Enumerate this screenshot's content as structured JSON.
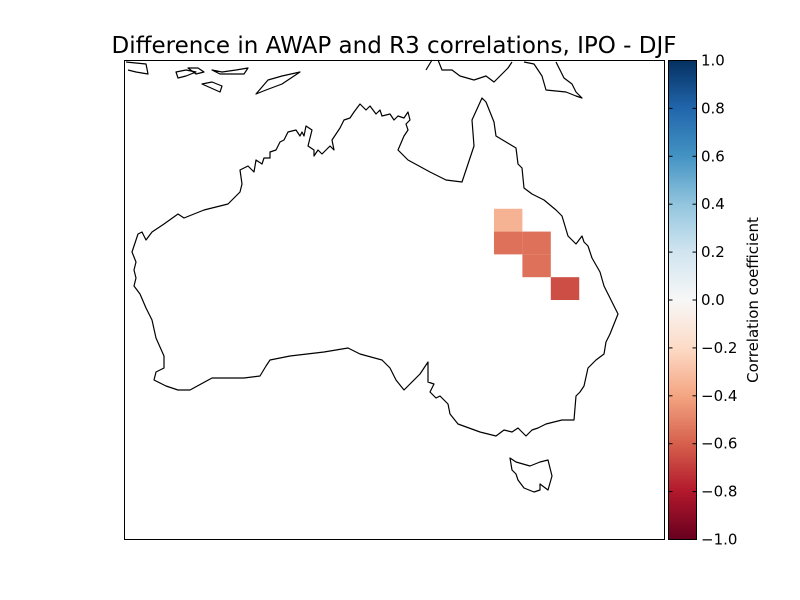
{
  "title": "Difference in AWAP and R3 correlations, IPO - DJF",
  "colorbar": {
    "label": "Correlation coefficient",
    "range": [
      -1.0,
      1.0
    ],
    "ticks": [
      "1.0",
      "0.8",
      "0.6",
      "0.4",
      "0.2",
      "0.0",
      "−0.2",
      "−0.4",
      "−0.6",
      "−0.8",
      "−1.0"
    ],
    "colormap": "RdBu",
    "stops": [
      "#67001f",
      "#b2182b",
      "#d6604d",
      "#f4a582",
      "#fddbc7",
      "#f7f7f7",
      "#d1e5f0",
      "#92c5de",
      "#4393c3",
      "#2166ac",
      "#053061"
    ]
  },
  "map": {
    "region": "Australia",
    "coastline_color": "#000000"
  },
  "chart_data": {
    "type": "heatmap",
    "title": "Difference in AWAP and R3 correlations, IPO - DJF",
    "value_range": [
      -1.0,
      1.0
    ],
    "cells": [
      {
        "lon": 142.5,
        "lat": -20.0,
        "value": -0.35
      },
      {
        "lon": 142.5,
        "lat": -22.0,
        "value": -0.55
      },
      {
        "lon": 145.0,
        "lat": -22.0,
        "value": -0.55
      },
      {
        "lon": 145.0,
        "lat": -24.0,
        "value": -0.55
      },
      {
        "lon": 147.5,
        "lat": -26.0,
        "value": -0.65
      }
    ]
  }
}
